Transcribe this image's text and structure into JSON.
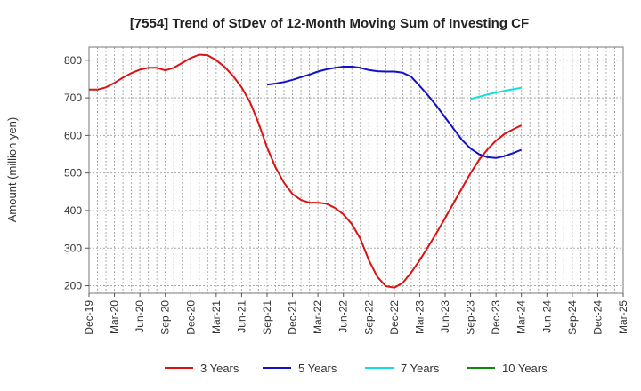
{
  "chart_data": {
    "type": "line",
    "title": "[7554]  Trend of StDev of 12-Month Moving Sum of Investing CF",
    "xlabel": "",
    "ylabel": "Amount (million yen)",
    "ylim": [
      180,
      835
    ],
    "yticks": [
      200,
      300,
      400,
      500,
      600,
      700,
      800
    ],
    "x_ticks": [
      "Dec-19",
      "Mar-20",
      "Jun-20",
      "Sep-20",
      "Dec-20",
      "Mar-21",
      "Jun-21",
      "Sep-21",
      "Dec-21",
      "Mar-22",
      "Jun-22",
      "Sep-22",
      "Dec-22",
      "Mar-23",
      "Jun-23",
      "Sep-23",
      "Dec-23",
      "Mar-24",
      "Jun-24",
      "Sep-24",
      "Dec-24",
      "Mar-25"
    ],
    "x_index_unit": "months from Dec-19",
    "grid": true,
    "legend_position": "bottom",
    "series": [
      {
        "name": "3 Years",
        "color": "#dd1111",
        "points": [
          [
            0,
            722
          ],
          [
            1,
            722
          ],
          [
            2,
            728
          ],
          [
            3,
            740
          ],
          [
            4,
            754
          ],
          [
            5,
            766
          ],
          [
            6,
            775
          ],
          [
            7,
            780
          ],
          [
            8,
            780
          ],
          [
            9,
            773
          ],
          [
            10,
            780
          ],
          [
            11,
            793
          ],
          [
            12,
            806
          ],
          [
            13,
            815
          ],
          [
            14,
            813
          ],
          [
            15,
            800
          ],
          [
            16,
            782
          ],
          [
            17,
            758
          ],
          [
            18,
            728
          ],
          [
            19,
            688
          ],
          [
            20,
            632
          ],
          [
            21,
            568
          ],
          [
            22,
            515
          ],
          [
            23,
            474
          ],
          [
            24,
            444
          ],
          [
            25,
            428
          ],
          [
            26,
            421
          ],
          [
            27,
            421
          ],
          [
            28,
            418
          ],
          [
            29,
            407
          ],
          [
            30,
            390
          ],
          [
            31,
            364
          ],
          [
            32,
            325
          ],
          [
            33,
            268
          ],
          [
            34,
            224
          ],
          [
            35,
            199
          ],
          [
            36,
            195
          ],
          [
            37,
            208
          ],
          [
            38,
            235
          ],
          [
            39,
            268
          ],
          [
            40,
            304
          ],
          [
            41,
            341
          ],
          [
            42,
            380
          ],
          [
            43,
            420
          ],
          [
            44,
            460
          ],
          [
            45,
            500
          ],
          [
            46,
            535
          ],
          [
            47,
            563
          ],
          [
            48,
            586
          ],
          [
            49,
            604
          ],
          [
            50,
            616
          ],
          [
            51,
            627
          ]
        ]
      },
      {
        "name": "5 Years",
        "color": "#1111cc",
        "points": [
          [
            21,
            735
          ],
          [
            22,
            738
          ],
          [
            23,
            742
          ],
          [
            24,
            748
          ],
          [
            25,
            755
          ],
          [
            26,
            762
          ],
          [
            27,
            770
          ],
          [
            28,
            776
          ],
          [
            29,
            780
          ],
          [
            30,
            783
          ],
          [
            31,
            783
          ],
          [
            32,
            780
          ],
          [
            33,
            774
          ],
          [
            34,
            771
          ],
          [
            35,
            770
          ],
          [
            36,
            770
          ],
          [
            37,
            767
          ],
          [
            38,
            756
          ],
          [
            39,
            732
          ],
          [
            40,
            706
          ],
          [
            41,
            678
          ],
          [
            42,
            648
          ],
          [
            43,
            618
          ],
          [
            44,
            588
          ],
          [
            45,
            565
          ],
          [
            46,
            550
          ],
          [
            47,
            542
          ],
          [
            48,
            540
          ],
          [
            49,
            545
          ],
          [
            50,
            553
          ],
          [
            51,
            562
          ]
        ]
      },
      {
        "name": "7 Years",
        "color": "#11dddd",
        "points": [
          [
            45,
            697
          ],
          [
            46,
            703
          ],
          [
            47,
            709
          ],
          [
            48,
            714
          ],
          [
            49,
            719
          ],
          [
            50,
            723
          ],
          [
            51,
            727
          ]
        ]
      },
      {
        "name": "10 Years",
        "color": "#118811",
        "points": []
      }
    ]
  }
}
